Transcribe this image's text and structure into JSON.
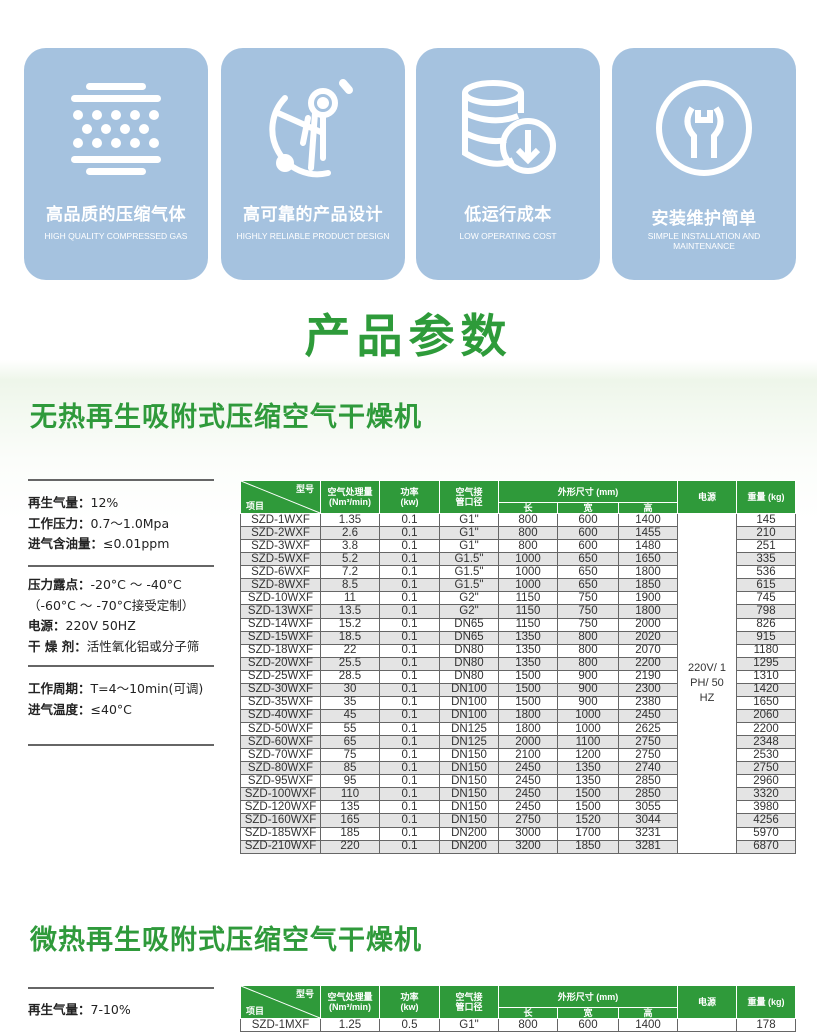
{
  "features": [
    {
      "icon": "compressed-gas-icon",
      "title": "高品质的压缩气体",
      "subtitle": "HIGH QUALITY COMPRESSED GAS"
    },
    {
      "icon": "design-tools-icon",
      "title": "高可靠的产品设计",
      "subtitle": "HIGHLY RELIABLE PRODUCT DESIGN"
    },
    {
      "icon": "coins-down-icon",
      "title": "低运行成本",
      "subtitle": "LOW OPERATING COST"
    },
    {
      "icon": "wrench-icon",
      "title": "安装维护简单",
      "subtitle": "SIMPLE INSTALLATION AND MAINTENANCE"
    }
  ],
  "colors": {
    "card": "#a5c2df",
    "accent": "#2f9a3a"
  },
  "main_title": "产品参数",
  "section1": {
    "title": "无热再生吸附式压缩空气干燥机",
    "specs": [
      {
        "label": "再生气量：",
        "value": "12%"
      },
      {
        "label": "工作压力：",
        "value": "0.7～1.0Mpa"
      },
      {
        "label": "进气含油量：",
        "value": "≤0.01ppm"
      },
      {
        "label": "压力露点：",
        "value": "-20°C ～ -40°C"
      },
      {
        "label": "",
        "value": "（-60°C ～ -70°C接受定制）"
      },
      {
        "label": "电源：",
        "value": "220V 50HZ"
      },
      {
        "label": "干 燥 剂：",
        "value": "活性氧化铝或分子筛"
      },
      {
        "label": "工作周期：",
        "value": "T=4～10min(可调)"
      },
      {
        "label": "进气温度：",
        "value": "≤40°C"
      }
    ],
    "table": {
      "power": "220V/ 1PH/ 50HZ",
      "rows": [
        [
          "SZD-1WXF",
          "1.35",
          "0.1",
          "G1\"",
          "800",
          "600",
          "1400",
          "145"
        ],
        [
          "SZD-2WXF",
          "2.6",
          "0.1",
          "G1\"",
          "800",
          "600",
          "1455",
          "210"
        ],
        [
          "SZD-3WXF",
          "3.8",
          "0.1",
          "G1\"",
          "800",
          "600",
          "1480",
          "251"
        ],
        [
          "SZD-5WXF",
          "5.2",
          "0.1",
          "G1.5\"",
          "1000",
          "650",
          "1650",
          "335"
        ],
        [
          "SZD-6WXF",
          "7.2",
          "0.1",
          "G1.5\"",
          "1000",
          "650",
          "1800",
          "536"
        ],
        [
          "SZD-8WXF",
          "8.5",
          "0.1",
          "G1.5\"",
          "1000",
          "650",
          "1850",
          "615"
        ],
        [
          "SZD-10WXF",
          "11",
          "0.1",
          "G2\"",
          "1150",
          "750",
          "1900",
          "745"
        ],
        [
          "SZD-13WXF",
          "13.5",
          "0.1",
          "G2\"",
          "1150",
          "750",
          "1800",
          "798"
        ],
        [
          "SZD-14WXF",
          "15.2",
          "0.1",
          "DN65",
          "1150",
          "750",
          "2000",
          "826"
        ],
        [
          "SZD-15WXF",
          "18.5",
          "0.1",
          "DN65",
          "1350",
          "800",
          "2020",
          "915"
        ],
        [
          "SZD-18WXF",
          "22",
          "0.1",
          "DN80",
          "1350",
          "800",
          "2070",
          "1180"
        ],
        [
          "SZD-20WXF",
          "25.5",
          "0.1",
          "DN80",
          "1350",
          "800",
          "2200",
          "1295"
        ],
        [
          "SZD-25WXF",
          "28.5",
          "0.1",
          "DN80",
          "1500",
          "900",
          "2190",
          "1310"
        ],
        [
          "SZD-30WXF",
          "30",
          "0.1",
          "DN100",
          "1500",
          "900",
          "2300",
          "1420"
        ],
        [
          "SZD-35WXF",
          "35",
          "0.1",
          "DN100",
          "1500",
          "900",
          "2380",
          "1650"
        ],
        [
          "SZD-40WXF",
          "45",
          "0.1",
          "DN100",
          "1800",
          "1000",
          "2450",
          "2060"
        ],
        [
          "SZD-50WXF",
          "55",
          "0.1",
          "DN125",
          "1800",
          "1000",
          "2625",
          "2200"
        ],
        [
          "SZD-60WXF",
          "65",
          "0.1",
          "DN125",
          "2000",
          "1100",
          "2750",
          "2348"
        ],
        [
          "SZD-70WXF",
          "75",
          "0.1",
          "DN150",
          "2100",
          "1200",
          "2750",
          "2530"
        ],
        [
          "SZD-80WXF",
          "85",
          "0.1",
          "DN150",
          "2450",
          "1350",
          "2740",
          "2750"
        ],
        [
          "SZD-95WXF",
          "95",
          "0.1",
          "DN150",
          "2450",
          "1350",
          "2850",
          "2960"
        ],
        [
          "SZD-100WXF",
          "110",
          "0.1",
          "DN150",
          "2450",
          "1500",
          "2850",
          "3320"
        ],
        [
          "SZD-120WXF",
          "135",
          "0.1",
          "DN150",
          "2450",
          "1500",
          "3055",
          "3980"
        ],
        [
          "SZD-160WXF",
          "165",
          "0.1",
          "DN150",
          "2750",
          "1520",
          "3044",
          "4256"
        ],
        [
          "SZD-185WXF",
          "185",
          "0.1",
          "DN200",
          "3000",
          "1700",
          "3231",
          "5970"
        ],
        [
          "SZD-210WXF",
          "220",
          "0.1",
          "DN200",
          "3200",
          "1850",
          "3281",
          "6870"
        ]
      ]
    }
  },
  "table_header": {
    "model": "型号",
    "item": "项目",
    "flow": "空气处理量",
    "flow_unit": "(Nm³/min)",
    "power_kw": "功率",
    "power_unit": "(kw)",
    "pipe1": "空气接",
    "pipe2": "管口径",
    "dims": "外形尺寸 (mm)",
    "length": "长",
    "width": "宽",
    "height": "高",
    "supply": "电源",
    "weight": "重量 (kg)"
  },
  "section2": {
    "title": "微热再生吸附式压缩空气干燥机",
    "specs": [
      {
        "label": "再生气量：",
        "value": "7-10%"
      }
    ],
    "table": {
      "rows": [
        [
          "SZD-1MXF",
          "1.25",
          "0.5",
          "G1\"",
          "800",
          "600",
          "1400",
          "178"
        ]
      ]
    }
  }
}
